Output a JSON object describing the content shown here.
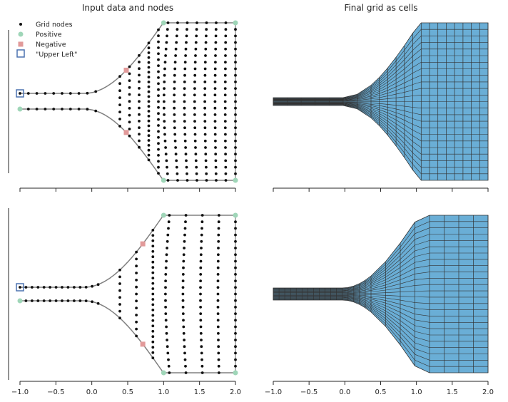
{
  "chart_data": [
    {
      "type": "scatter",
      "title": "Input data and nodes",
      "xlim": [
        -1.0,
        2.0
      ],
      "show_xticklabels": false,
      "legend_position": "top-left",
      "legend": [
        {
          "label": "Grid nodes",
          "marker": "dot",
          "color": "#111111"
        },
        {
          "label": "Positive",
          "marker": "circle",
          "color": "#9fd6b8"
        },
        {
          "label": "Negative",
          "marker": "square",
          "color": "#e29a9a"
        },
        {
          "label": "\"Upper Left\"",
          "marker": "open-square",
          "color": "#4c72b0"
        }
      ],
      "boundary_color": "#808080",
      "positive_points": [
        {
          "x": 1.0,
          "y": 1.0
        },
        {
          "x": 2.0,
          "y": 1.0
        },
        {
          "x": -1.0,
          "y": -0.1
        },
        {
          "x": 1.0,
          "y": -1.0
        },
        {
          "x": 2.0,
          "y": -1.0
        }
      ],
      "negative_points": [
        {
          "x": 0.48,
          "y": 0.1
        },
        {
          "x": 0.48,
          "y": -0.3
        }
      ],
      "upper_left": {
        "x": -1.0,
        "y": 0.0
      },
      "grid_nodes": {
        "neck_columns": 10,
        "bulb_columns": 13,
        "rows": 25
      }
    },
    {
      "type": "heatmap",
      "title": "Final grid as cells",
      "xlim": [
        -1.0,
        2.0
      ],
      "show_xticklabels": false,
      "cell_color": "#6aaed6",
      "edge_color": "#333333",
      "grid": {
        "neck_columns": 7,
        "bulb_columns": 14,
        "rows": 24
      }
    },
    {
      "type": "scatter",
      "title": "",
      "xlim": [
        -1.0,
        2.0
      ],
      "show_xticklabels": true,
      "boundary_color": "#808080",
      "positive_points": [
        {
          "x": 1.0,
          "y": 1.0
        },
        {
          "x": 2.0,
          "y": 1.0
        },
        {
          "x": -1.0,
          "y": -0.1
        },
        {
          "x": 1.0,
          "y": -1.0
        },
        {
          "x": 2.0,
          "y": -1.0
        }
      ],
      "negative_points": [
        {
          "x": 0.71,
          "y": 0.28
        },
        {
          "x": 0.71,
          "y": -0.46
        }
      ],
      "upper_left": {
        "x": -1.0,
        "y": 0.0
      },
      "grid_nodes": {
        "neck_columns": 14,
        "bulb_columns": 8,
        "rows": 25
      }
    },
    {
      "type": "heatmap",
      "title": "",
      "xlim": [
        -1.0,
        2.0
      ],
      "show_xticklabels": true,
      "cell_color": "#6aaed6",
      "edge_color": "#333333",
      "grid": {
        "neck_columns": 17,
        "bulb_columns": 8,
        "rows": 25
      }
    }
  ],
  "xticks": [
    "−1.0",
    "−0.5",
    "0.0",
    "0.5",
    "1.0",
    "1.5",
    "2.0"
  ]
}
